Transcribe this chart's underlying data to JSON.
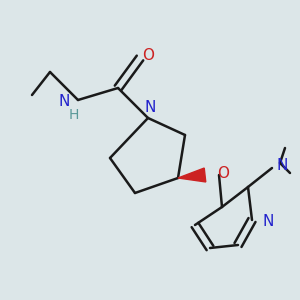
{
  "background_color": "#dce6e8",
  "bond_color": "#1a1a1a",
  "nitrogen_color": "#2222cc",
  "oxygen_color": "#cc2222",
  "wedge_color": "#cc2222",
  "h_color": "#5a9999",
  "figsize": [
    3.0,
    3.0
  ],
  "dpi": 100,
  "xlim": [
    0,
    300
  ],
  "ylim": [
    0,
    300
  ]
}
